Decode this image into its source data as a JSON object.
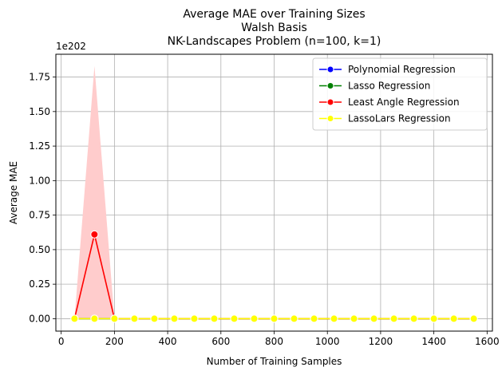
{
  "chart_data": {
    "type": "line",
    "title": [
      "Average MAE over Training Sizes",
      "Walsh Basis",
      "NK-Landscapes Problem (n=100, k=1)"
    ],
    "xlabel": "Number of Training Samples",
    "ylabel": "Average MAE",
    "offset_text": "1e202",
    "xlim": [
      -20,
      1620
    ],
    "ylim": [
      -0.09,
      1.915
    ],
    "xticks": [
      0,
      200,
      400,
      600,
      800,
      1000,
      1200,
      1400,
      1600
    ],
    "yticks": [
      0.0,
      0.25,
      0.5,
      0.75,
      1.0,
      1.25,
      1.5,
      1.75
    ],
    "ytick_labels": [
      "0.00",
      "0.25",
      "0.50",
      "0.75",
      "1.00",
      "1.25",
      "1.50",
      "1.75"
    ],
    "grid": true,
    "legend_position": "top-right",
    "x": [
      50,
      125,
      200,
      275,
      350,
      425,
      500,
      575,
      650,
      725,
      800,
      875,
      950,
      1025,
      1100,
      1175,
      1250,
      1325,
      1400,
      1475,
      1550
    ],
    "series": [
      {
        "name": "Polynomial Regression",
        "color": "#0000ff",
        "values": [
          0,
          0,
          0,
          0,
          0,
          0,
          0,
          0,
          0,
          0,
          0,
          0,
          0,
          0,
          0,
          0,
          0,
          0,
          0,
          0,
          0
        ]
      },
      {
        "name": "Lasso Regression",
        "color": "#008000",
        "values": [
          0,
          0,
          0,
          0,
          0,
          0,
          0,
          0,
          0,
          0,
          0,
          0,
          0,
          0,
          0,
          0,
          0,
          0,
          0,
          0,
          0
        ]
      },
      {
        "name": "Least Angle Regression",
        "color": "#ff0000",
        "values": [
          0,
          0.61,
          0,
          0,
          0,
          0,
          0,
          0,
          0,
          0,
          0,
          0,
          0,
          0,
          0,
          0,
          0,
          0,
          0,
          0,
          0
        ],
        "band_upper": [
          0,
          1.83,
          0,
          0,
          0,
          0,
          0,
          0,
          0,
          0,
          0,
          0,
          0,
          0,
          0,
          0,
          0,
          0,
          0,
          0,
          0
        ],
        "band_lower": [
          0,
          0,
          0,
          0,
          0,
          0,
          0,
          0,
          0,
          0,
          0,
          0,
          0,
          0,
          0,
          0,
          0,
          0,
          0,
          0,
          0
        ],
        "band_color": "#ffcccc"
      },
      {
        "name": "LassoLars Regression",
        "color": "#ffff00",
        "values": [
          0,
          0,
          0,
          0,
          0,
          0,
          0,
          0,
          0,
          0,
          0,
          0,
          0,
          0,
          0,
          0,
          0,
          0,
          0,
          0,
          0
        ]
      }
    ]
  }
}
